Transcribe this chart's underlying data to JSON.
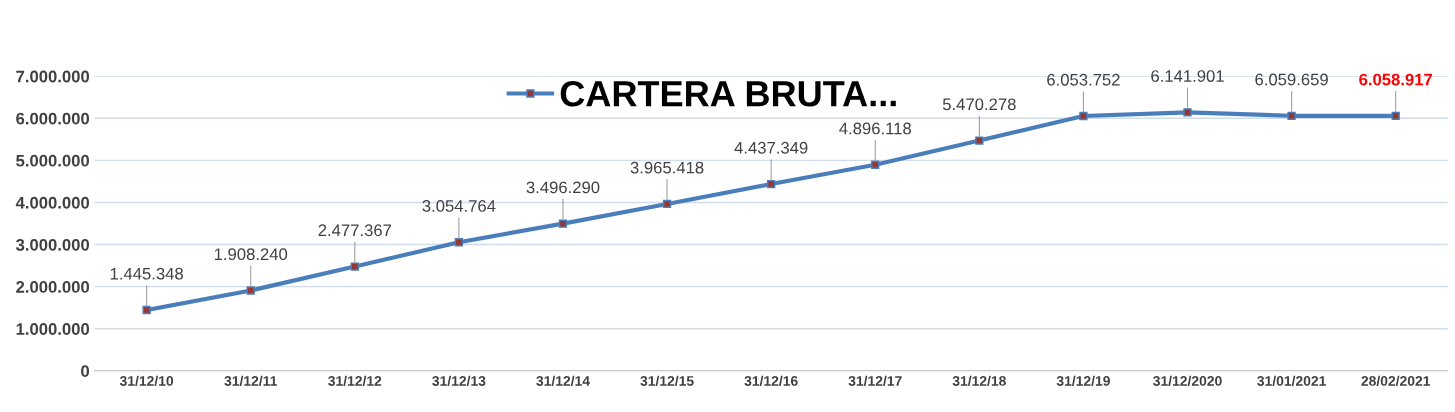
{
  "chart_data": {
    "type": "line",
    "categories": [
      "31/12/10",
      "31/12/11",
      "31/12/12",
      "31/12/13",
      "31/12/14",
      "31/12/15",
      "31/12/16",
      "31/12/17",
      "31/12/18",
      "31/12/19",
      "31/12/2020",
      "31/01/2021",
      "28/02/2021"
    ],
    "series": [
      {
        "name": "CARTERA BRUTA...",
        "color": "#4a7ebb",
        "values": [
          1445348,
          1908240,
          2477367,
          3054764,
          3496290,
          3965418,
          4437349,
          4896118,
          5470278,
          6053752,
          6141901,
          6059659,
          6058917
        ]
      }
    ],
    "value_labels": [
      "1.445.348",
      "1.908.240",
      "2.477.367",
      "3.054.764",
      "3.496.290",
      "3.965.418",
      "4.437.349",
      "4.896.118",
      "5.470.278",
      "6.053.752",
      "6.141.901",
      "6.059.659",
      "6.058.917"
    ],
    "ylim": [
      0,
      7000000
    ],
    "yticks": [
      {
        "value": 0,
        "label": "0"
      },
      {
        "value": 1000000,
        "label": "1.000.000"
      },
      {
        "value": 2000000,
        "label": "2.000.000"
      },
      {
        "value": 3000000,
        "label": "3.000.000"
      },
      {
        "value": 4000000,
        "label": "4.000.000"
      },
      {
        "value": 5000000,
        "label": "5.000.000"
      },
      {
        "value": 6000000,
        "label": "6.000.000"
      },
      {
        "value": 7000000,
        "label": "7.000.000"
      }
    ],
    "grid": "y",
    "legend": "top",
    "marker": "square",
    "line_style": "solid"
  }
}
